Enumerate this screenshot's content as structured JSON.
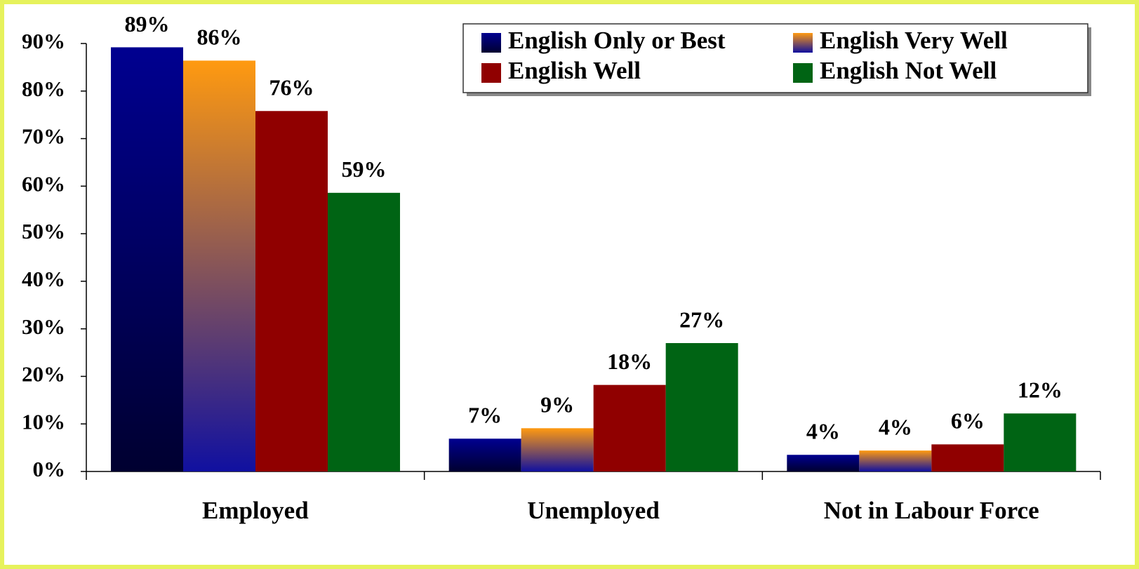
{
  "chart_data": {
    "type": "bar",
    "categories": [
      "Employed",
      "Unemployed",
      "Not in Labour Force"
    ],
    "series": [
      {
        "name": "English Only or Best",
        "color": "#000090",
        "values": [
          89.2,
          6.9,
          3.5
        ],
        "value_labels": [
          "89%",
          "7%",
          "4%"
        ]
      },
      {
        "name": "English Very Well",
        "color": "#ff9a10",
        "values": [
          86.4,
          9.1,
          4.4
        ],
        "value_labels": [
          "86%",
          "9%",
          "4%"
        ]
      },
      {
        "name": "English Well",
        "color": "#900000",
        "values": [
          75.8,
          18.2,
          5.7
        ],
        "value_labels": [
          "76%",
          "18%",
          "6%"
        ]
      },
      {
        "name": "English Not Well",
        "color": "#006414",
        "values": [
          58.6,
          27.0,
          12.2
        ],
        "value_labels": [
          "59%",
          "27%",
          "12%"
        ]
      }
    ],
    "ylim": [
      0,
      90
    ],
    "yticks": [
      {
        "value": 0,
        "label": "0%"
      },
      {
        "value": 10,
        "label": "10%"
      },
      {
        "value": 20,
        "label": "20%"
      },
      {
        "value": 30,
        "label": "30%"
      },
      {
        "value": 40,
        "label": "40%"
      },
      {
        "value": 50,
        "label": "50%"
      },
      {
        "value": 60,
        "label": "60%"
      },
      {
        "value": 70,
        "label": "70%"
      },
      {
        "value": 80,
        "label": "80%"
      },
      {
        "value": 90,
        "label": "90%"
      }
    ],
    "legend": "top-right"
  }
}
